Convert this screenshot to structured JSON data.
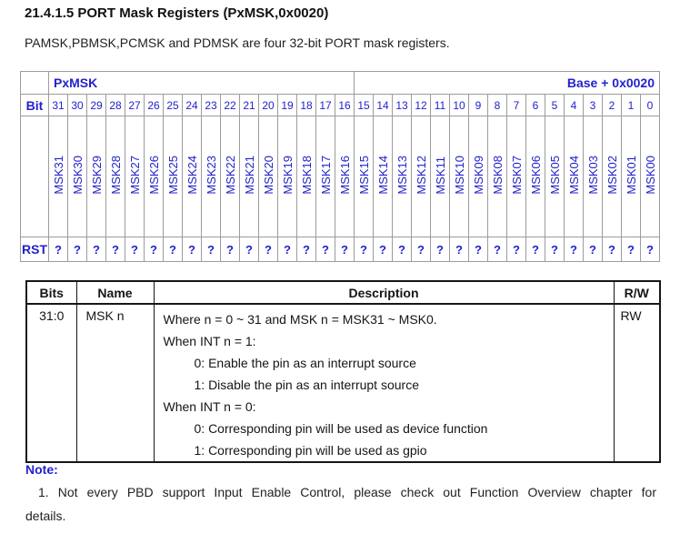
{
  "title": "21.4.1.5 PORT Mask Registers (PxMSK,0x0020)",
  "intro": "PAMSK,PBMSK,PCMSK and PDMSK are four 32-bit PORT mask registers.",
  "colors": {
    "accent_blue": "#2222cc",
    "register_grid_gray": "#9c9c9c",
    "description_table_border": "#161616"
  },
  "register_table": {
    "name": "PxMSK",
    "base": "Base + 0x0020",
    "bit_label": "Bit",
    "rst_label": "RST",
    "bits": [
      31,
      30,
      29,
      28,
      27,
      26,
      25,
      24,
      23,
      22,
      21,
      20,
      19,
      18,
      17,
      16,
      15,
      14,
      13,
      12,
      11,
      10,
      9,
      8,
      7,
      6,
      5,
      4,
      3,
      2,
      1,
      0
    ],
    "fields": [
      "MSK31",
      "MSK30",
      "MSK29",
      "MSK28",
      "MSK27",
      "MSK26",
      "MSK25",
      "MSK24",
      "MSK23",
      "MSK22",
      "MSK21",
      "MSK20",
      "MSK19",
      "MSK18",
      "MSK17",
      "MSK16",
      "MSK15",
      "MSK14",
      "MSK13",
      "MSK12",
      "MSK11",
      "MSK10",
      "MSK09",
      "MSK08",
      "MSK07",
      "MSK06",
      "MSK05",
      "MSK04",
      "MSK03",
      "MSK02",
      "MSK01",
      "MSK00"
    ],
    "rst_values": [
      "?",
      "?",
      "?",
      "?",
      "?",
      "?",
      "?",
      "?",
      "?",
      "?",
      "?",
      "?",
      "?",
      "?",
      "?",
      "?",
      "?",
      "?",
      "?",
      "?",
      "?",
      "?",
      "?",
      "?",
      "?",
      "?",
      "?",
      "?",
      "?",
      "?",
      "?",
      "?"
    ]
  },
  "desc_table": {
    "headers": [
      "Bits",
      "Name",
      "Description",
      "R/W"
    ],
    "row": {
      "bits": "31:0",
      "name": "MSK n",
      "rw": "RW",
      "description_lines": [
        {
          "text": "Where n = 0 ~ 31 and MSK n = MSK31 ~ MSK0.",
          "indent": 0
        },
        {
          "text": "When INT n = 1:",
          "indent": 0
        },
        {
          "text": "0: Enable the pin as an interrupt source",
          "indent": 1
        },
        {
          "text": "1: Disable the pin as an interrupt source",
          "indent": 1
        },
        {
          "text": "When INT n = 0:",
          "indent": 0
        },
        {
          "text": "0: Corresponding pin will be used as device function",
          "indent": 1
        },
        {
          "text": "1: Corresponding pin will be used as gpio",
          "indent": 1
        }
      ]
    }
  },
  "note": {
    "label": "Note:",
    "lines": [
      "1. Not every PBD support Input Enable Control, please check out Function Overview chapter for",
      "details."
    ]
  }
}
